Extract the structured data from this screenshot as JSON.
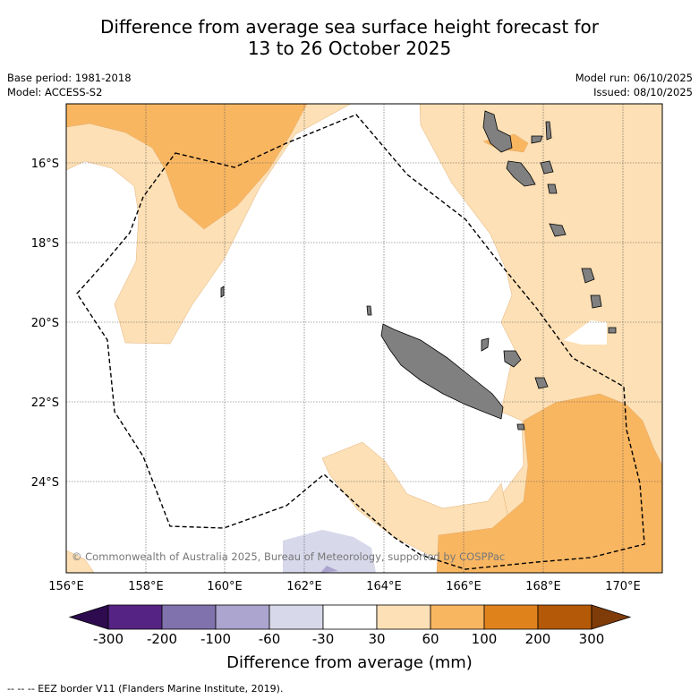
{
  "title": {
    "line1": "Difference from average sea surface height forecast for",
    "line2": "13 to 26 October 2025"
  },
  "meta": {
    "base_period": "Base period: 1981-2018",
    "model": "Model: ACCESS-S2",
    "model_run": "Model run: 06/10/2025",
    "issued": "Issued: 08/10/2025"
  },
  "map": {
    "lat_labels": [
      "16°S",
      "18°S",
      "20°S",
      "22°S",
      "24°S"
    ],
    "lon_labels": [
      "156°E",
      "158°E",
      "160°E",
      "162°E",
      "164°E",
      "166°E",
      "168°E",
      "170°E"
    ],
    "copyright": "© Commonwealth of Australia 2025, Bureau of Meteorology, supported by COSPPac",
    "colors": {
      "band_30_60": "#fde0b5",
      "band_60_100": "#f9b661",
      "band_m60_m30": "#d8d8eb",
      "band_m100_m60": "#aca5cf",
      "land": "#808080"
    }
  },
  "colorbar": {
    "title": "Difference from average (mm)",
    "labels": [
      "-300",
      "-200",
      "-100",
      "-60",
      "-30",
      "30",
      "60",
      "100",
      "200",
      "300"
    ],
    "colors": [
      "#2d0b4e",
      "#552383",
      "#8072ac",
      "#aca5cf",
      "#d8d8eb",
      "#ffffff",
      "#fde0b5",
      "#f9b661",
      "#e0821c",
      "#b35907",
      "#7f3b08"
    ]
  },
  "footer": "-- -- -- EEZ border V11 (Flanders Marine Institute, 2019)."
}
